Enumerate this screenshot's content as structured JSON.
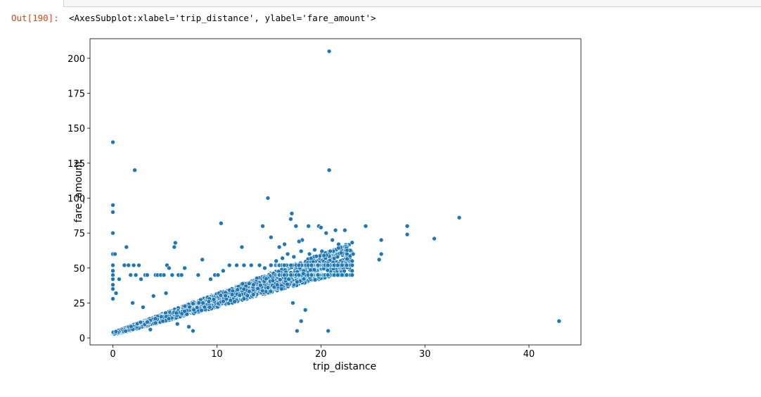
{
  "notebook": {
    "out_prompt": "Out[190]:",
    "out_repr": "<AxesSubplot:xlabel='trip_distance', ylabel='fare_amount'>"
  },
  "chart_data": {
    "type": "scatter",
    "title": "",
    "xlabel": "trip_distance",
    "ylabel": "fare_amount",
    "xlim": [
      -2.2,
      45.0
    ],
    "ylim": [
      -5,
      214
    ],
    "xticks": [
      0,
      10,
      20,
      30,
      40
    ],
    "yticks": [
      0,
      25,
      50,
      75,
      100,
      125,
      150,
      175,
      200
    ],
    "grid": false,
    "marker_color": "#1f77b4",
    "points": [
      [
        20.8,
        205
      ],
      [
        0,
        140
      ],
      [
        2.1,
        120
      ],
      [
        20.8,
        120
      ],
      [
        0,
        95
      ],
      [
        0,
        90
      ],
      [
        0,
        75
      ],
      [
        14.9,
        100
      ],
      [
        33.3,
        86
      ],
      [
        28.3,
        80
      ],
      [
        28.3,
        74
      ],
      [
        30.9,
        71
      ],
      [
        24.3,
        80
      ],
      [
        25.8,
        70
      ],
      [
        25.8,
        60
      ],
      [
        25.6,
        56
      ],
      [
        42.9,
        12
      ],
      [
        10.4,
        82
      ],
      [
        6.0,
        68
      ],
      [
        5.9,
        65
      ],
      [
        1.3,
        65
      ],
      [
        8.6,
        56
      ],
      [
        17.2,
        89
      ],
      [
        17.1,
        85
      ],
      [
        17.6,
        80
      ],
      [
        18.8,
        80
      ],
      [
        19.8,
        80
      ],
      [
        20.0,
        79
      ],
      [
        21.4,
        77
      ],
      [
        22.3,
        77
      ],
      [
        20.5,
        75
      ],
      [
        14.4,
        80
      ],
      [
        15.2,
        72
      ],
      [
        18.2,
        70
      ],
      [
        17.9,
        69
      ],
      [
        0,
        60
      ],
      [
        0.2,
        60
      ],
      [
        12.4,
        65
      ],
      [
        16.0,
        65
      ],
      [
        16.5,
        67
      ],
      [
        21.1,
        70
      ],
      [
        21.7,
        67
      ],
      [
        23.1,
        60
      ],
      [
        17.3,
        25
      ],
      [
        18.5,
        20
      ],
      [
        17.7,
        5
      ],
      [
        18.1,
        12
      ],
      [
        20.7,
        5
      ],
      [
        7.7,
        5
      ],
      [
        7.3,
        8
      ],
      [
        0,
        52
      ],
      [
        0,
        48
      ],
      [
        0,
        45
      ],
      [
        0,
        42
      ],
      [
        0,
        38
      ],
      [
        0,
        35
      ],
      [
        0.3,
        32
      ],
      [
        0,
        28
      ],
      [
        0.6,
        42
      ],
      [
        1.1,
        52
      ],
      [
        1.5,
        52
      ],
      [
        1.7,
        45
      ],
      [
        2.0,
        52
      ],
      [
        2.2,
        45
      ],
      [
        2.5,
        52
      ],
      [
        2.7,
        42
      ],
      [
        3.1,
        45
      ],
      [
        3.3,
        45
      ],
      [
        4.1,
        45
      ],
      [
        4.3,
        45
      ],
      [
        4.6,
        45
      ],
      [
        4.9,
        45
      ],
      [
        5.2,
        52
      ],
      [
        5.4,
        50
      ],
      [
        5.7,
        45
      ],
      [
        6.3,
        45
      ],
      [
        6.6,
        45
      ],
      [
        6.9,
        50
      ],
      [
        8.2,
        45
      ],
      [
        9.4,
        42
      ],
      [
        9.8,
        45
      ],
      [
        10.1,
        45
      ],
      [
        10.6,
        48
      ],
      [
        11.2,
        52
      ],
      [
        11.9,
        52
      ],
      [
        12.6,
        52
      ],
      [
        13.3,
        52
      ],
      [
        14.1,
        52
      ],
      [
        14.6,
        50
      ],
      [
        15.2,
        52
      ],
      [
        15.7,
        55
      ],
      [
        16.3,
        57
      ],
      [
        16.8,
        60
      ],
      [
        17.4,
        58
      ],
      [
        18.1,
        62
      ],
      [
        18.9,
        60
      ],
      [
        19.4,
        63
      ],
      [
        20.1,
        62
      ],
      [
        20.9,
        62
      ],
      [
        21.6,
        58
      ],
      [
        22.5,
        60
      ],
      [
        23.0,
        52
      ],
      [
        23.0,
        55
      ],
      [
        23.0,
        48
      ],
      [
        23.0,
        45
      ],
      [
        4.8,
        12
      ],
      [
        3.6,
        6
      ],
      [
        6.2,
        10
      ],
      [
        2.9,
        22
      ],
      [
        1.9,
        25
      ],
      [
        3.9,
        30
      ],
      [
        5.1,
        32
      ],
      [
        12.6,
        28
      ],
      [
        13.5,
        31
      ],
      [
        14.9,
        36
      ],
      [
        15.8,
        38
      ],
      [
        16.9,
        42
      ],
      [
        17.7,
        40
      ],
      [
        18.3,
        46
      ],
      [
        19.1,
        45
      ],
      [
        11.7,
        26
      ],
      [
        9.3,
        22
      ]
    ]
  }
}
